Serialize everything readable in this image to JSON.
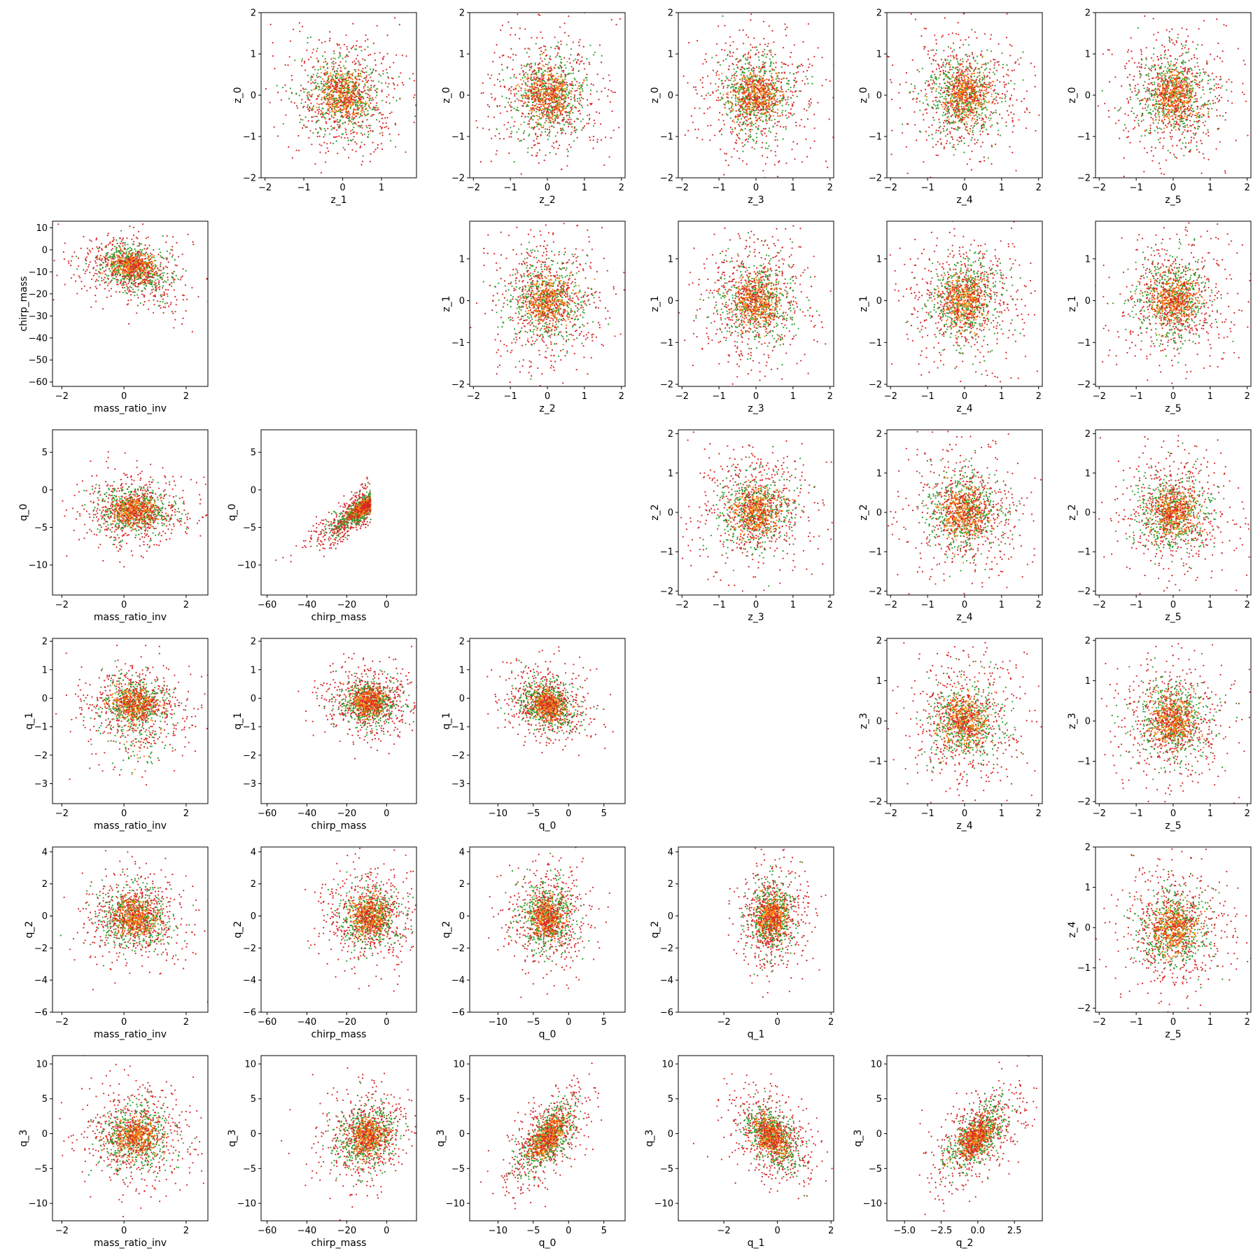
{
  "colors": {
    "red": "#d62728",
    "green": "#2ca02c",
    "orange": "#ff7f0e"
  },
  "variables": {
    "mass_ratio_inv": {
      "label": "mass_ratio_inv",
      "lim": [
        -2.3,
        2.7
      ],
      "ticks": [
        -2,
        0,
        2
      ],
      "tick_labels": [
        "−2",
        "0",
        "2"
      ]
    },
    "chirp_mass": {
      "label": "chirp_mass",
      "lim": [
        -63,
        15
      ],
      "ticks": [
        -60,
        -40,
        -20,
        0
      ],
      "tick_labels": [
        "−60",
        "−40",
        "−20",
        "0"
      ]
    },
    "q_0": {
      "label": "q_0",
      "lim": [
        -14,
        8
      ],
      "ticks": [
        -10,
        -5,
        0,
        5
      ],
      "tick_labels": [
        "−10",
        "−5",
        "0",
        "5"
      ]
    },
    "q_1": {
      "label": "q_1",
      "lim": [
        -3.7,
        2.1
      ],
      "ticks": [
        -2,
        0,
        2
      ],
      "tick_labels": [
        "−2",
        "0",
        "2"
      ]
    },
    "q_2": {
      "label": "q_2",
      "lim": [
        -6.2,
        4.4
      ],
      "ticks": [
        -5.0,
        -2.5,
        0.0,
        2.5
      ],
      "tick_labels": [
        "−5.0",
        "−2.5",
        "0.0",
        "2.5"
      ]
    },
    "z_1": {
      "label": "z_1",
      "lim": [
        -2.1,
        1.9
      ],
      "ticks": [
        -2,
        -1,
        0,
        1
      ],
      "tick_labels": [
        "−2",
        "−1",
        "0",
        "1"
      ]
    },
    "z_2": {
      "label": "z_2",
      "lim": [
        -2.1,
        2.1
      ],
      "ticks": [
        -2,
        -1,
        0,
        1,
        2
      ],
      "tick_labels": [
        "−2",
        "−1",
        "0",
        "1",
        "2"
      ]
    },
    "z_3": {
      "label": "z_3",
      "lim": [
        -2.1,
        2.1
      ],
      "ticks": [
        -2,
        -1,
        0,
        1,
        2
      ],
      "tick_labels": [
        "−2",
        "−1",
        "0",
        "1",
        "2"
      ]
    },
    "z_4": {
      "label": "z_4",
      "lim": [
        -2.1,
        2.1
      ],
      "ticks": [
        -2,
        -1,
        0,
        1,
        2
      ],
      "tick_labels": [
        "−2",
        "−1",
        "0",
        "1",
        "2"
      ]
    },
    "z_5": {
      "label": "z_5",
      "lim": [
        -2.1,
        2.1
      ],
      "ticks": [
        -2,
        -1,
        0,
        1,
        2
      ],
      "tick_labels": [
        "−2",
        "−1",
        "0",
        "1",
        "2"
      ]
    }
  },
  "chart_data": [
    {
      "type": "scatter",
      "row": 0,
      "col": 1,
      "xlabel": "z_1",
      "ylabel": "z_0",
      "ylim": [
        -2.0,
        2.0
      ],
      "yticks": [
        -2,
        -1,
        0,
        1,
        2
      ],
      "ytick_labels": [
        "−2",
        "−1",
        "0",
        "1",
        "2"
      ],
      "dist": "iso"
    },
    {
      "type": "scatter",
      "row": 0,
      "col": 2,
      "xlabel": "z_2",
      "ylabel": "z_0",
      "ylim": [
        -2.0,
        2.0
      ],
      "yticks": [
        -2,
        -1,
        0,
        1,
        2
      ],
      "ytick_labels": [
        "−2",
        "−1",
        "0",
        "1",
        "2"
      ],
      "dist": "iso"
    },
    {
      "type": "scatter",
      "row": 0,
      "col": 3,
      "xlabel": "z_3",
      "ylabel": "z_0",
      "ylim": [
        -2.0,
        2.0
      ],
      "yticks": [
        -2,
        -1,
        0,
        1,
        2
      ],
      "ytick_labels": [
        "−2",
        "−1",
        "0",
        "1",
        "2"
      ],
      "dist": "iso"
    },
    {
      "type": "scatter",
      "row": 0,
      "col": 4,
      "xlabel": "z_4",
      "ylabel": "z_0",
      "ylim": [
        -2.0,
        2.0
      ],
      "yticks": [
        -2,
        -1,
        0,
        1,
        2
      ],
      "ytick_labels": [
        "−2",
        "−1",
        "0",
        "1",
        "2"
      ],
      "dist": "iso"
    },
    {
      "type": "scatter",
      "row": 0,
      "col": 5,
      "xlabel": "z_5",
      "ylabel": "z_0",
      "ylim": [
        -2.0,
        2.0
      ],
      "yticks": [
        -2,
        -1,
        0,
        1,
        2
      ],
      "ytick_labels": [
        "−2",
        "−1",
        "0",
        "1",
        "2"
      ],
      "dist": "iso"
    },
    {
      "type": "scatter",
      "row": 1,
      "col": 0,
      "xlabel": "mass_ratio_inv",
      "ylabel": "chirp_mass",
      "ylim": [
        -62,
        13
      ],
      "yticks": [
        -60,
        -50,
        -40,
        -30,
        -20,
        -10,
        0,
        10
      ],
      "ytick_labels": [
        "−60",
        "−50",
        "−40",
        "−30",
        "−20",
        "−10",
        "0",
        "10"
      ],
      "dist": "chirp_vs_mri"
    },
    {
      "type": "scatter",
      "row": 1,
      "col": 2,
      "xlabel": "z_2",
      "ylabel": "z_1",
      "ylim": [
        -2.05,
        1.9
      ],
      "yticks": [
        -2,
        -1,
        0,
        1
      ],
      "ytick_labels": [
        "−2",
        "−1",
        "0",
        "1"
      ],
      "dist": "iso"
    },
    {
      "type": "scatter",
      "row": 1,
      "col": 3,
      "xlabel": "z_3",
      "ylabel": "z_1",
      "ylim": [
        -2.05,
        1.9
      ],
      "yticks": [
        -2,
        -1,
        0,
        1
      ],
      "ytick_labels": [
        "−2",
        "−1",
        "0",
        "1"
      ],
      "dist": "iso"
    },
    {
      "type": "scatter",
      "row": 1,
      "col": 4,
      "xlabel": "z_4",
      "ylabel": "z_1",
      "ylim": [
        -2.05,
        1.9
      ],
      "yticks": [
        -2,
        -1,
        0,
        1
      ],
      "ytick_labels": [
        "−2",
        "−1",
        "0",
        "1"
      ],
      "dist": "iso"
    },
    {
      "type": "scatter",
      "row": 1,
      "col": 5,
      "xlabel": "z_5",
      "ylabel": "z_1",
      "ylim": [
        -2.05,
        1.9
      ],
      "yticks": [
        -2,
        -1,
        0,
        1
      ],
      "ytick_labels": [
        "−2",
        "−1",
        "0",
        "1"
      ],
      "dist": "iso"
    },
    {
      "type": "scatter",
      "row": 2,
      "col": 0,
      "xlabel": "mass_ratio_inv",
      "ylabel": "q_0",
      "ylim": [
        -14,
        8
      ],
      "yticks": [
        -10,
        -5,
        0,
        5
      ],
      "ytick_labels": [
        "−10",
        "−5",
        "0",
        "5"
      ],
      "dist": "q0_vs_mri"
    },
    {
      "type": "scatter",
      "row": 2,
      "col": 1,
      "xlabel": "chirp_mass",
      "ylabel": "q_0",
      "ylim": [
        -14,
        8
      ],
      "yticks": [
        -10,
        -5,
        0,
        5
      ],
      "ytick_labels": [
        "−10",
        "−5",
        "0",
        "5"
      ],
      "dist": "q0_vs_chirp"
    },
    {
      "type": "scatter",
      "row": 2,
      "col": 3,
      "xlabel": "z_3",
      "ylabel": "z_2",
      "ylim": [
        -2.1,
        2.1
      ],
      "yticks": [
        -2,
        -1,
        0,
        1,
        2
      ],
      "ytick_labels": [
        "−2",
        "−1",
        "0",
        "1",
        "2"
      ],
      "dist": "iso"
    },
    {
      "type": "scatter",
      "row": 2,
      "col": 4,
      "xlabel": "z_4",
      "ylabel": "z_2",
      "ylim": [
        -2.1,
        2.1
      ],
      "yticks": [
        -2,
        -1,
        0,
        1,
        2
      ],
      "ytick_labels": [
        "−2",
        "−1",
        "0",
        "1",
        "2"
      ],
      "dist": "iso"
    },
    {
      "type": "scatter",
      "row": 2,
      "col": 5,
      "xlabel": "z_5",
      "ylabel": "z_2",
      "ylim": [
        -2.1,
        2.1
      ],
      "yticks": [
        -2,
        -1,
        0,
        1,
        2
      ],
      "ytick_labels": [
        "−2",
        "−1",
        "0",
        "1",
        "2"
      ],
      "dist": "iso"
    },
    {
      "type": "scatter",
      "row": 3,
      "col": 0,
      "xlabel": "mass_ratio_inv",
      "ylabel": "q_1",
      "ylim": [
        -3.7,
        2.1
      ],
      "yticks": [
        -3,
        -2,
        -1,
        0,
        1,
        2
      ],
      "ytick_labels": [
        "−3",
        "−2",
        "−1",
        "0",
        "1",
        "2"
      ],
      "dist": "q1_vs_mri"
    },
    {
      "type": "scatter",
      "row": 3,
      "col": 1,
      "xlabel": "chirp_mass",
      "ylabel": "q_1",
      "ylim": [
        -3.7,
        2.1
      ],
      "yticks": [
        -3,
        -2,
        -1,
        0,
        1,
        2
      ],
      "ytick_labels": [
        "−3",
        "−2",
        "−1",
        "0",
        "1",
        "2"
      ],
      "dist": "q1_vs_chirp"
    },
    {
      "type": "scatter",
      "row": 3,
      "col": 2,
      "xlabel": "q_0",
      "ylabel": "q_1",
      "ylim": [
        -3.7,
        2.1
      ],
      "yticks": [
        -3,
        -2,
        -1,
        0,
        1,
        2
      ],
      "ytick_labels": [
        "−3",
        "−2",
        "−1",
        "0",
        "1",
        "2"
      ],
      "dist": "q1_vs_q0"
    },
    {
      "type": "scatter",
      "row": 3,
      "col": 4,
      "xlabel": "z_4",
      "ylabel": "z_3",
      "ylim": [
        -2.05,
        2.05
      ],
      "yticks": [
        -2,
        -1,
        0,
        1,
        2
      ],
      "ytick_labels": [
        "−2",
        "−1",
        "0",
        "1",
        "2"
      ],
      "dist": "iso"
    },
    {
      "type": "scatter",
      "row": 3,
      "col": 5,
      "xlabel": "z_5",
      "ylabel": "z_3",
      "ylim": [
        -2.05,
        2.05
      ],
      "yticks": [
        -2,
        -1,
        0,
        1,
        2
      ],
      "ytick_labels": [
        "−2",
        "−1",
        "0",
        "1",
        "2"
      ],
      "dist": "iso"
    },
    {
      "type": "scatter",
      "row": 4,
      "col": 0,
      "xlabel": "mass_ratio_inv",
      "ylabel": "q_2",
      "ylim": [
        -6,
        4.3
      ],
      "yticks": [
        -6,
        -4,
        -2,
        0,
        2,
        4
      ],
      "ytick_labels": [
        "−6",
        "−4",
        "−2",
        "0",
        "2",
        "4"
      ],
      "dist": "q2_vs_mri"
    },
    {
      "type": "scatter",
      "row": 4,
      "col": 1,
      "xlabel": "chirp_mass",
      "ylabel": "q_2",
      "ylim": [
        -6,
        4.3
      ],
      "yticks": [
        -6,
        -4,
        -2,
        0,
        2,
        4
      ],
      "ytick_labels": [
        "−6",
        "−4",
        "−2",
        "0",
        "2",
        "4"
      ],
      "dist": "q2_vs_chirp"
    },
    {
      "type": "scatter",
      "row": 4,
      "col": 2,
      "xlabel": "q_0",
      "ylabel": "q_2",
      "ylim": [
        -6,
        4.3
      ],
      "yticks": [
        -6,
        -4,
        -2,
        0,
        2,
        4
      ],
      "ytick_labels": [
        "−6",
        "−4",
        "−2",
        "0",
        "2",
        "4"
      ],
      "dist": "q2_vs_q0"
    },
    {
      "type": "scatter",
      "row": 4,
      "col": 3,
      "xlabel": "q_1",
      "ylabel": "q_2",
      "ylim": [
        -6,
        4.3
      ],
      "yticks": [
        -6,
        -4,
        -2,
        0,
        2,
        4
      ],
      "ytick_labels": [
        "−6",
        "−4",
        "−2",
        "0",
        "2",
        "4"
      ],
      "dist": "q2_vs_q1"
    },
    {
      "type": "scatter",
      "row": 4,
      "col": 5,
      "xlabel": "z_5",
      "ylabel": "z_4",
      "ylim": [
        -2.1,
        2.0
      ],
      "yticks": [
        -2,
        -1,
        0,
        1,
        2
      ],
      "ytick_labels": [
        "−2",
        "−1",
        "0",
        "1",
        "2"
      ],
      "dist": "iso"
    },
    {
      "type": "scatter",
      "row": 5,
      "col": 0,
      "xlabel": "mass_ratio_inv",
      "ylabel": "q_3",
      "ylim": [
        -12.5,
        11.2
      ],
      "yticks": [
        -10,
        -5,
        0,
        5,
        10
      ],
      "ytick_labels": [
        "−10",
        "−5",
        "0",
        "5",
        "10"
      ],
      "dist": "q3_vs_mri"
    },
    {
      "type": "scatter",
      "row": 5,
      "col": 1,
      "xlabel": "chirp_mass",
      "ylabel": "q_3",
      "ylim": [
        -12.5,
        11.2
      ],
      "yticks": [
        -10,
        -5,
        0,
        5,
        10
      ],
      "ytick_labels": [
        "−10",
        "−5",
        "0",
        "5",
        "10"
      ],
      "dist": "q3_vs_chirp"
    },
    {
      "type": "scatter",
      "row": 5,
      "col": 2,
      "xlabel": "q_0",
      "ylabel": "q_3",
      "ylim": [
        -12.5,
        11.2
      ],
      "yticks": [
        -10,
        -5,
        0,
        5,
        10
      ],
      "ytick_labels": [
        "−10",
        "−5",
        "0",
        "5",
        "10"
      ],
      "dist": "q3_vs_q0"
    },
    {
      "type": "scatter",
      "row": 5,
      "col": 3,
      "xlabel": "q_1",
      "ylabel": "q_3",
      "ylim": [
        -12.5,
        11.2
      ],
      "yticks": [
        -10,
        -5,
        0,
        5,
        10
      ],
      "ytick_labels": [
        "−10",
        "−5",
        "0",
        "5",
        "10"
      ],
      "dist": "q3_vs_q1"
    },
    {
      "type": "scatter",
      "row": 5,
      "col": 4,
      "xlabel": "q_2",
      "ylabel": "q_3",
      "ylim": [
        -12.5,
        11.2
      ],
      "yticks": [
        -10,
        -5,
        0,
        5,
        10
      ],
      "ytick_labels": [
        "−10",
        "−5",
        "0",
        "5",
        "10"
      ],
      "dist": "q3_vs_q2"
    }
  ]
}
